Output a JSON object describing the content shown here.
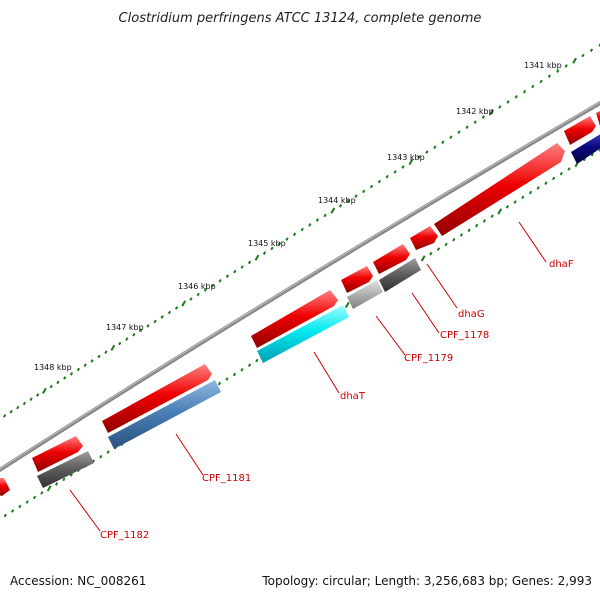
{
  "title": "Clostridium perfringens ATCC 13124, complete genome",
  "accession": "Accession: NC_008261",
  "topology": "Topology: circular; Length: 3,256,683 bp; Genes: 2,993",
  "colors": {
    "backbone": "#808080",
    "tick": "#1a7a1a",
    "label": "#cc0000",
    "cds_forward": "#ee0000",
    "gene_dark_gray": "#606060",
    "gene_light_gray": "#b4b4b4",
    "gene_cyan": "#00e8f0",
    "gene_steel_blue": "#4a80b8",
    "gene_navy": "#0a0a80"
  },
  "ticks": [
    {
      "label": "1341 kbp"
    },
    {
      "label": "1342 kbp"
    },
    {
      "label": "1343 kbp"
    },
    {
      "label": "1344 kbp"
    },
    {
      "label": "1345 kbp"
    },
    {
      "label": "1346 kbp"
    },
    {
      "label": "1347 kbp"
    },
    {
      "label": "1348 kbp"
    }
  ],
  "genes": [
    {
      "name": "dhaF",
      "color": "#606060"
    },
    {
      "name": "dhaG",
      "color": "#606060"
    },
    {
      "name": "CPF_1178",
      "color": "#606060"
    },
    {
      "name": "CPF_1179",
      "color": "#b4b4b4"
    },
    {
      "name": "dhaT",
      "color": "#00e8f0"
    },
    {
      "name": "CPF_1181",
      "color": "#4a80b8"
    },
    {
      "name": "CPF_1182",
      "color": "#606060"
    }
  ]
}
